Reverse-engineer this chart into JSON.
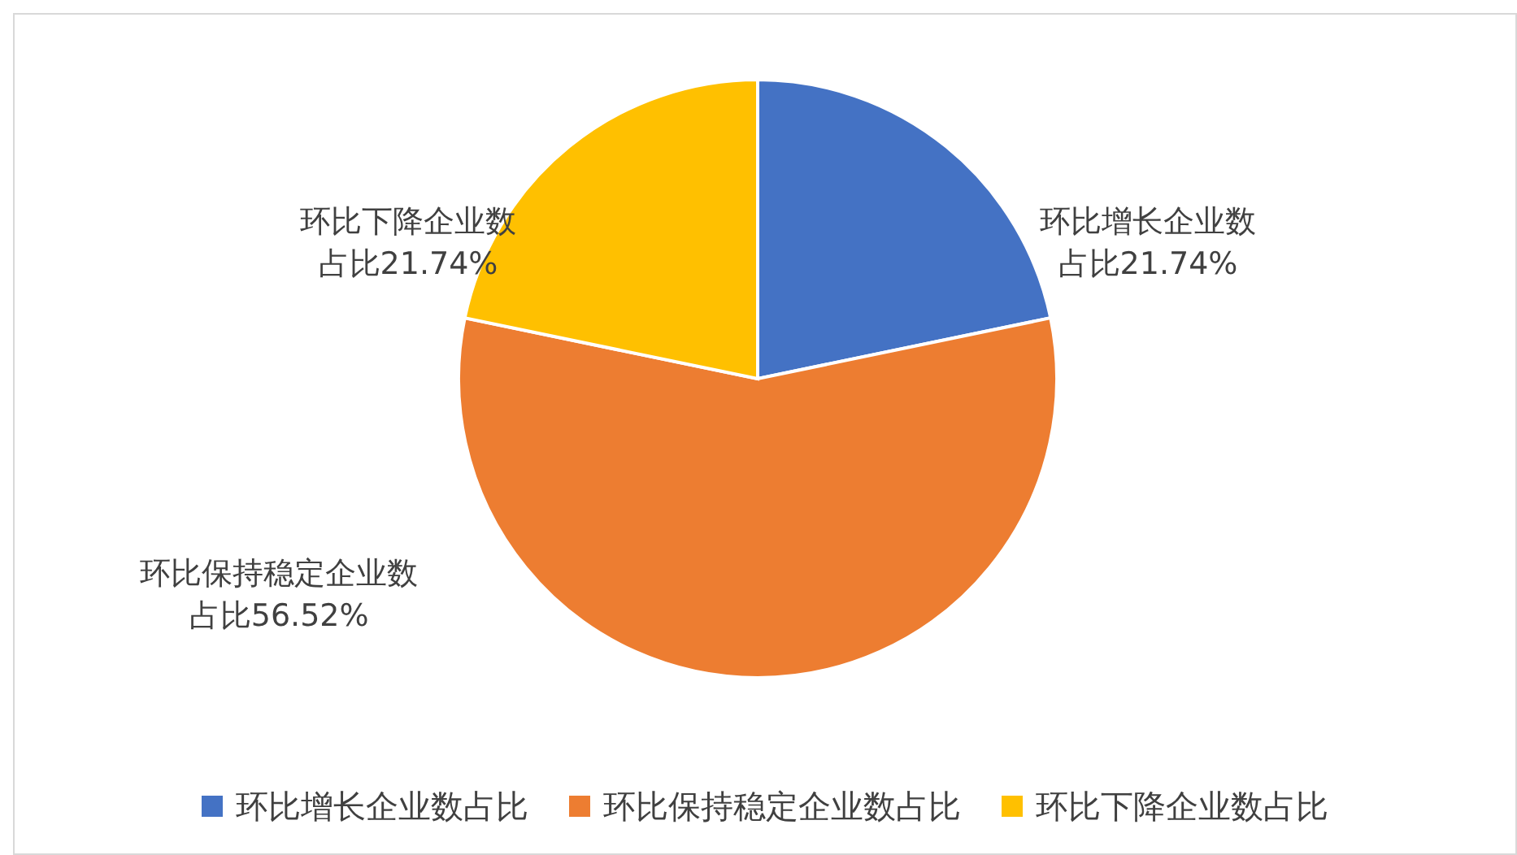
{
  "chart_data": {
    "type": "pie",
    "categories": [
      "环比增长企业数占比",
      "环比保持稳定企业数占比",
      "环比下降企业数占比"
    ],
    "values": [
      21.74,
      56.52,
      21.74
    ],
    "colors": [
      "#4472c4",
      "#ed7d31",
      "#ffc000"
    ],
    "value_labels": [
      "环比增长企业数占比21.74%",
      "环比保持稳定企业数占比56.52%",
      "环比下降企业数占比21.74%"
    ],
    "legend": "bottom"
  }
}
